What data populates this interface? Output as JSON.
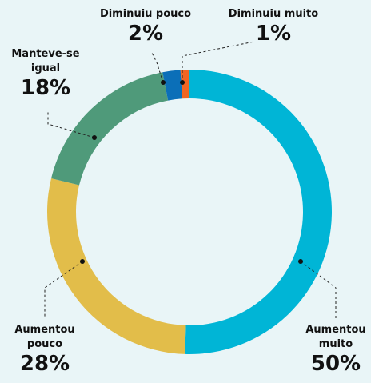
{
  "chart_data": {
    "type": "donut",
    "categories": [
      "Aumentou muito",
      "Aumentou pouco",
      "Manteve-se igual",
      "Diminuiu pouco",
      "Diminuiu muito"
    ],
    "values": [
      50,
      28,
      18,
      2,
      1
    ],
    "value_labels": [
      "50%",
      "28%",
      "18%",
      "2%",
      "1%"
    ],
    "colors": [
      "#00b5d6",
      "#e2bd4a",
      "#4f9a7a",
      "#0b6fb8",
      "#f26522"
    ]
  }
}
